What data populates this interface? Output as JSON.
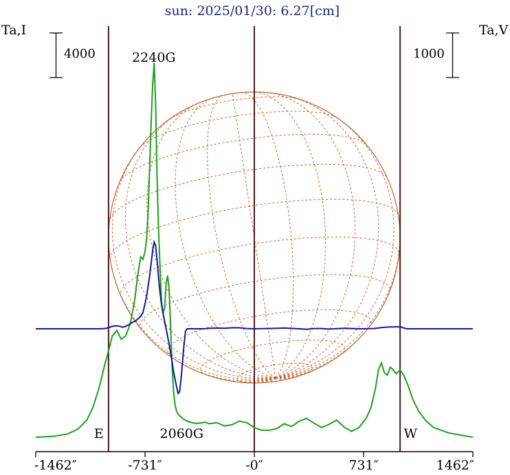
{
  "title": "sun: 2025/01/30: 6.27[cm]",
  "colors": {
    "background": "#ffffff",
    "title": "#1a237e",
    "stokes_i": "#1aa01a",
    "stokes_v": "#0a1a9a",
    "limb_lines": "#4a1a1a",
    "disk_grid": "#c0602a",
    "axis": "#000000"
  },
  "chart_data": {
    "type": "line",
    "title": "sun: 2025/01/30: 6.27[cm]",
    "left_axis_label": "Ta,I",
    "right_axis_label": "Ta,V",
    "left_scale_bar": "4000",
    "right_scale_bar": "1000",
    "xlim": [
      -1462,
      1462
    ],
    "x_ticks": [
      {
        "value": -1462,
        "label": "-1462″"
      },
      {
        "value": -731,
        "label": "-731″"
      },
      {
        "value": 0,
        "label": "-0″"
      },
      {
        "value": 731,
        "label": "731″"
      },
      {
        "value": 1462,
        "label": "1462″"
      }
    ],
    "limb_positions": [
      -975,
      975
    ],
    "center_line": 0,
    "annotations": [
      {
        "text": "2240G",
        "x": -672
      },
      {
        "text": "2060G",
        "x": -486
      },
      {
        "text": "E",
        "x": -1040
      },
      {
        "text": "W",
        "x": 1045
      }
    ],
    "series": [
      {
        "key": "I",
        "unit_per_bar": 4000,
        "x": [
          -1462,
          -1350,
          -1250,
          -1180,
          -1120,
          -1080,
          -1040,
          -1000,
          -975,
          -950,
          -920,
          -890,
          -860,
          -830,
          -800,
          -780,
          -760,
          -745,
          -731,
          -720,
          -710,
          -700,
          -690,
          -680,
          -670,
          -660,
          -650,
          -640,
          -630,
          -620,
          -610,
          -600,
          -590,
          -580,
          -570,
          -560,
          -550,
          -540,
          -530,
          -520,
          -510,
          -500,
          -490,
          -480,
          -470,
          -450,
          -430,
          -400,
          -370,
          -330,
          -300,
          -250,
          -200,
          -150,
          -100,
          -50,
          0,
          50,
          100,
          150,
          200,
          250,
          300,
          350,
          400,
          450,
          500,
          550,
          600,
          650,
          700,
          750,
          780,
          810,
          830,
          850,
          870,
          890,
          910,
          930,
          950,
          975,
          1000,
          1030,
          1060,
          1100,
          1150,
          1200,
          1300,
          1400,
          1462
        ],
        "y": [
          0.0,
          0.15,
          0.6,
          1.5,
          3.2,
          5.5,
          9.0,
          13.5,
          16.0,
          18.8,
          19.8,
          18.2,
          18.8,
          21.0,
          25.5,
          30.0,
          33.5,
          33.0,
          34.5,
          37.0,
          42.0,
          50.0,
          58.5,
          65.5,
          69.5,
          62.0,
          48.0,
          38.0,
          31.0,
          25.0,
          23.0,
          24.0,
          28.5,
          30.0,
          27.5,
          20.5,
          13.0,
          8.5,
          6.0,
          4.8,
          4.3,
          4.0,
          3.8,
          3.5,
          3.3,
          3.0,
          2.8,
          2.6,
          2.6,
          2.8,
          2.5,
          2.7,
          2.1,
          2.3,
          3.0,
          2.7,
          1.8,
          1.3,
          1.3,
          1.6,
          2.5,
          2.0,
          3.0,
          3.5,
          2.6,
          1.8,
          2.4,
          3.2,
          1.9,
          1.1,
          1.8,
          3.6,
          5.5,
          9.0,
          12.5,
          13.8,
          12.0,
          11.5,
          13.0,
          12.5,
          11.8,
          12.5,
          11.5,
          9.5,
          7.0,
          4.8,
          3.0,
          1.8,
          0.8,
          0.3,
          0.0
        ]
      },
      {
        "key": "V",
        "unit_per_bar": 1000,
        "x": [
          -1462,
          -1300,
          -1150,
          -1080,
          -1040,
          -1000,
          -975,
          -960,
          -940,
          -920,
          -900,
          -880,
          -860,
          -840,
          -820,
          -800,
          -780,
          -760,
          -745,
          -731,
          -720,
          -710,
          -700,
          -690,
          -680,
          -670,
          -660,
          -650,
          -640,
          -630,
          -620,
          -610,
          -600,
          -590,
          -580,
          -570,
          -560,
          -550,
          -540,
          -530,
          -520,
          -510,
          -500,
          -490,
          -480,
          -470,
          -460,
          -450,
          -440,
          -430,
          -410,
          -380,
          -340,
          -300,
          -250,
          -200,
          -150,
          -100,
          -50,
          0,
          100,
          200,
          300,
          350,
          400,
          450,
          500,
          600,
          700,
          800,
          850,
          900,
          950,
          975,
          990,
          1000,
          1020,
          1050,
          1100,
          1200,
          1300,
          1400,
          1462
        ],
        "y": [
          0.0,
          0.0,
          0.0,
          0.0,
          0.0,
          0.05,
          0.2,
          0.4,
          0.55,
          0.6,
          0.5,
          0.3,
          0.5,
          0.8,
          1.2,
          1.5,
          1.9,
          2.5,
          3.2,
          5.0,
          6.5,
          8.5,
          10.5,
          13.0,
          15.5,
          17.2,
          16.5,
          13.5,
          10.0,
          7.0,
          4.8,
          3.0,
          1.5,
          0.0,
          -1.5,
          -3.0,
          -4.8,
          -6.5,
          -8.5,
          -10.0,
          -11.5,
          -12.8,
          -12.5,
          -10.0,
          -6.5,
          -3.0,
          -0.5,
          0.0,
          0.0,
          0.0,
          0.0,
          0.0,
          0.0,
          0.1,
          0.15,
          0.1,
          0.2,
          0.2,
          0.05,
          0.0,
          0.05,
          0.15,
          0.0,
          -0.1,
          0.05,
          0.05,
          -0.05,
          0.1,
          0.0,
          0.05,
          0.25,
          0.35,
          0.4,
          0.4,
          0.3,
          0.15,
          0.0,
          0.0,
          0.0,
          0.0,
          0.0,
          0.0,
          0.0
        ]
      }
    ]
  }
}
